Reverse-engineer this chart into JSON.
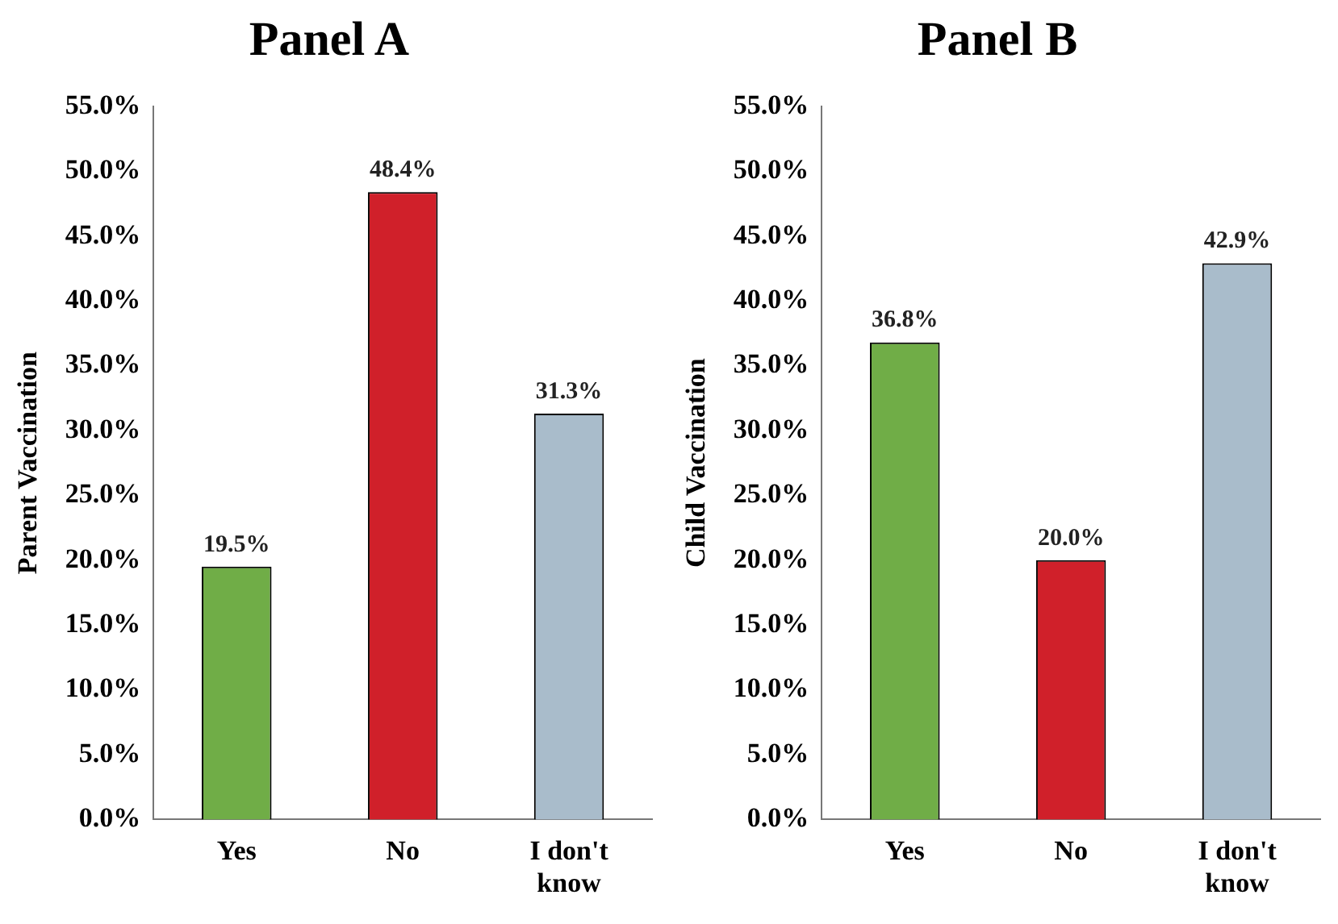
{
  "chart_data": [
    {
      "type": "bar",
      "title": "Panel A",
      "ylabel": "Parent Vaccination",
      "categories": [
        "Yes",
        "No",
        "I don't know"
      ],
      "values": [
        19.5,
        48.4,
        31.3
      ],
      "colors": [
        "#70ad47",
        "#d0202a",
        "#a9bccb"
      ],
      "value_labels": [
        "19.5%",
        "48.4%",
        "31.3%"
      ],
      "ylim": [
        0,
        55
      ],
      "yticks": [
        {
          "value": 0,
          "label": "0.0%"
        },
        {
          "value": 5,
          "label": "5.0%"
        },
        {
          "value": 10,
          "label": "10.0%"
        },
        {
          "value": 15,
          "label": "15.0%"
        },
        {
          "value": 20,
          "label": "20.0%"
        },
        {
          "value": 25,
          "label": "25.0%"
        },
        {
          "value": 30,
          "label": "30.0%"
        },
        {
          "value": 35,
          "label": "35.0%"
        },
        {
          "value": 40,
          "label": "40.0%"
        },
        {
          "value": 45,
          "label": "45.0%"
        },
        {
          "value": 50,
          "label": "50.0%"
        },
        {
          "value": 55,
          "label": "55.0%"
        }
      ],
      "grid": false,
      "legend": false
    },
    {
      "type": "bar",
      "title": "Panel B",
      "ylabel": "Child Vaccination",
      "categories": [
        "Yes",
        "No",
        "I don't know"
      ],
      "values": [
        36.8,
        20.0,
        42.9
      ],
      "colors": [
        "#70ad47",
        "#d0202a",
        "#a9bccb"
      ],
      "value_labels": [
        "36.8%",
        "20.0%",
        "42.9%"
      ],
      "ylim": [
        0,
        55
      ],
      "yticks": [
        {
          "value": 0,
          "label": "0.0%"
        },
        {
          "value": 5,
          "label": "5.0%"
        },
        {
          "value": 10,
          "label": "10.0%"
        },
        {
          "value": 15,
          "label": "15.0%"
        },
        {
          "value": 20,
          "label": "20.0%"
        },
        {
          "value": 25,
          "label": "25.0%"
        },
        {
          "value": 30,
          "label": "30.0%"
        },
        {
          "value": 35,
          "label": "35.0%"
        },
        {
          "value": 40,
          "label": "40.0%"
        },
        {
          "value": 45,
          "label": "45.0%"
        },
        {
          "value": 50,
          "label": "50.0%"
        },
        {
          "value": 55,
          "label": "55.0%"
        }
      ],
      "grid": false,
      "legend": false
    }
  ]
}
